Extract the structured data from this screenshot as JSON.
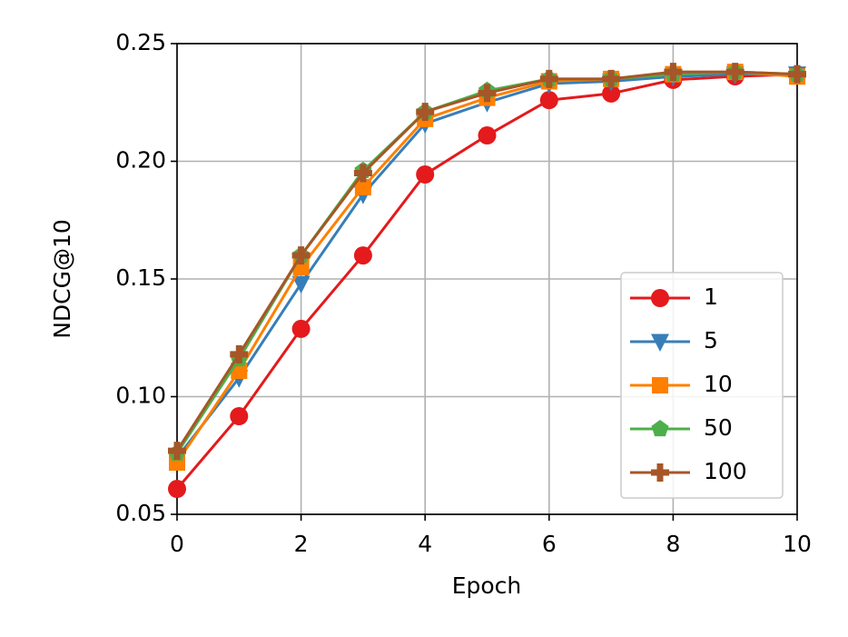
{
  "chart_data": {
    "type": "line",
    "xlabel": "Epoch",
    "ylabel": "NDCG@10",
    "x": [
      0,
      1,
      2,
      3,
      4,
      5,
      6,
      7,
      8,
      9,
      10
    ],
    "series": [
      {
        "name": "1",
        "color": "#e41a1c",
        "marker": "circle",
        "values": [
          0.0608,
          0.0917,
          0.1288,
          0.16,
          0.1944,
          0.211,
          0.226,
          0.2288,
          0.2346,
          0.2361,
          0.2369
        ]
      },
      {
        "name": "5",
        "color": "#377eb8",
        "marker": "triangle-down",
        "values": [
          0.074,
          0.108,
          0.148,
          0.186,
          0.216,
          0.225,
          0.233,
          0.234,
          0.236,
          0.237,
          0.237
        ]
      },
      {
        "name": "10",
        "color": "#ff7f00",
        "marker": "square",
        "values": [
          0.072,
          0.111,
          0.155,
          0.189,
          0.218,
          0.227,
          0.234,
          0.235,
          0.237,
          0.238,
          0.236
        ]
      },
      {
        "name": "50",
        "color": "#4daf4a",
        "marker": "pentagon",
        "values": [
          0.076,
          0.116,
          0.16,
          0.196,
          0.221,
          0.23,
          0.235,
          0.235,
          0.237,
          0.238,
          0.237
        ]
      },
      {
        "name": "100",
        "color": "#a65628",
        "marker": "plus",
        "values": [
          0.077,
          0.118,
          0.16,
          0.195,
          0.221,
          0.229,
          0.235,
          0.235,
          0.238,
          0.238,
          0.237
        ]
      }
    ],
    "xlim": [
      0,
      10
    ],
    "ylim": [
      0.05,
      0.25
    ],
    "xticks": [
      0,
      2,
      4,
      6,
      8,
      10
    ],
    "yticks": [
      0.05,
      {
        "value": 0.1,
        "label": "0.10"
      },
      0.15,
      {
        "value": 0.2,
        "label": "0.20"
      },
      0.25
    ],
    "grid": true,
    "legend": "lower right"
  }
}
